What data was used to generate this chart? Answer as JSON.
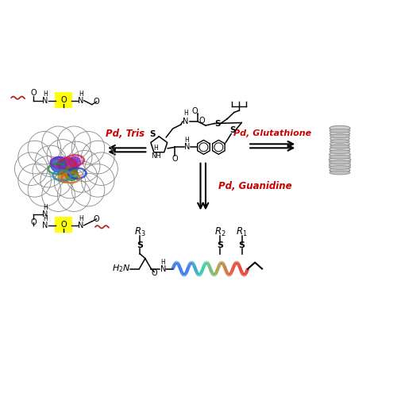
{
  "bg_color": "white",
  "arrow_color": "black",
  "label_color": "#cc0000",
  "labels": {
    "tris": "Pd, Tris",
    "glutathione": "Pd, Glutathione",
    "guanidine": "Pd, Guanidine"
  },
  "figsize": [
    5.0,
    5.0
  ],
  "dpi": 100,
  "xlim": [
    0,
    10
  ],
  "ylim": [
    0,
    10
  ]
}
